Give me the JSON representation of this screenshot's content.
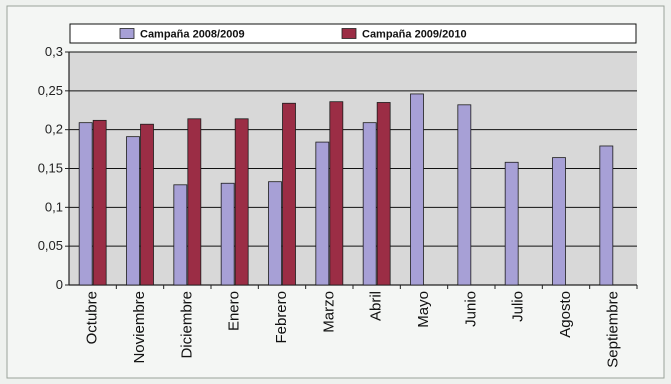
{
  "chart_data": {
    "type": "bar",
    "title": "",
    "xlabel": "",
    "ylabel": "",
    "categories": [
      "Octubre",
      "Noviembre",
      "Diciembre",
      "Enero",
      "Febrero",
      "Marzo",
      "Abril",
      "Mayo",
      "Junio",
      "Julio",
      "Agosto",
      "Septiembre"
    ],
    "series": [
      {
        "name": "Campaña 2008/2009",
        "color": "#a7a0d6",
        "values": [
          0.209,
          0.191,
          0.129,
          0.131,
          0.133,
          0.184,
          0.209,
          0.246,
          0.232,
          0.158,
          0.164,
          0.179
        ]
      },
      {
        "name": "Campaña 2009/2010",
        "color": "#9b2d45",
        "values": [
          0.212,
          0.207,
          0.214,
          0.214,
          0.234,
          0.236,
          0.235,
          null,
          null,
          null,
          null,
          null
        ]
      }
    ],
    "ylim": [
      0,
      0.3
    ],
    "yticks": [
      0,
      0.05,
      0.1,
      0.15,
      0.2,
      0.25,
      0.3
    ],
    "ytick_labels": [
      "0",
      "0,05",
      "0,1",
      "0,15",
      "0,2",
      "0,25",
      "0,3"
    ],
    "grid": true,
    "legend_position": "top"
  }
}
